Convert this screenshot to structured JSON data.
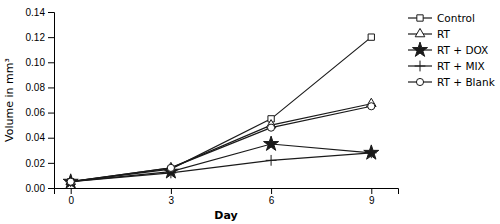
{
  "chart_data": {
    "type": "line",
    "xlabel": "Day",
    "ylabel": "Volume in mm³",
    "x": [
      0,
      3,
      6,
      9
    ],
    "series": [
      {
        "name": "Control",
        "values": [
          0.005,
          0.015,
          0.055,
          0.12
        ],
        "marker": "square"
      },
      {
        "name": "RT",
        "values": [
          0.005,
          0.016,
          0.05,
          0.067
        ],
        "marker": "triangle-up"
      },
      {
        "name": "RT + DOX",
        "values": [
          0.005,
          0.013,
          0.035,
          0.028
        ],
        "marker": "star"
      },
      {
        "name": "RT + MIX",
        "values": [
          0.005,
          0.012,
          0.022,
          0.028
        ],
        "marker": "plus"
      },
      {
        "name": "RT + Blank",
        "values": [
          0.005,
          0.016,
          0.048,
          0.065
        ],
        "marker": "circle"
      }
    ],
    "color": "#1a1a1a",
    "xlim": [
      -0.5,
      9.8
    ],
    "xticks": [
      0,
      3,
      6,
      9
    ],
    "ylim": [
      0,
      0.14
    ],
    "yticks": [
      {
        "value": 0,
        "label": "0.00"
      },
      0.02,
      0.04,
      0.06,
      0.08,
      {
        "value": 0.1,
        "label": "0.10"
      },
      0.12,
      0.14
    ],
    "legend": "right",
    "grid": false
  }
}
